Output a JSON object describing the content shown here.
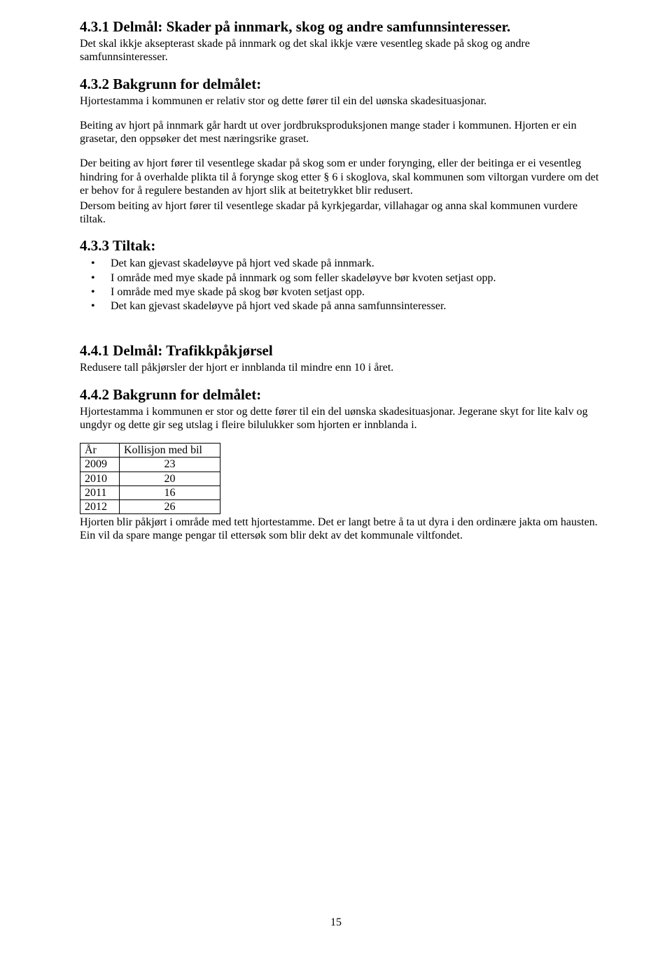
{
  "s431": {
    "heading": "4.3.1  Delmål: Skader på innmark, skog og andre samfunnsinteresser.",
    "para": "Det skal ikkje aksepterast skade på innmark og det skal ikkje være vesentleg skade på skog og andre samfunnsinteresser."
  },
  "s432": {
    "heading": "4.3.2  Bakgrunn for delmålet:",
    "para1": "Hjortestamma i kommunen er relativ stor og dette fører til ein del uønska skadesituasjonar.",
    "para2": "Beiting av hjort på innmark går hardt ut over jordbruksproduksjonen mange stader i kommunen. Hjorten er ein grasetar, den oppsøker det mest næringsrike graset.",
    "para3": "Der beiting av hjort fører til vesentlege skadar på skog som er under forynging, eller der beitinga er ei vesentleg hindring for å overhalde plikta til å forynge skog etter § 6 i skoglova, skal kommunen som viltorgan vurdere om det er behov for å regulere bestanden av hjort slik at beitetrykket blir redusert.",
    "para4": "Dersom beiting av hjort fører til vesentlege skadar på kyrkjegardar, villahagar og anna skal kommunen vurdere tiltak."
  },
  "s433": {
    "heading": "4.3.3  Tiltak:",
    "items": [
      "Det kan gjevast skadeløyve på hjort ved skade på innmark.",
      "I område med mye skade på innmark og som feller skadeløyve bør kvoten setjast opp.",
      "I område med mye skade på skog bør kvoten setjast opp.",
      "Det kan gjevast skadeløyve på hjort ved skade på anna samfunnsinteresser."
    ]
  },
  "s441": {
    "heading": "4.4.1  Delmål: Trafikkpåkjørsel",
    "para": "Redusere tall påkjørsler der hjort er innblanda til mindre enn 10 i året."
  },
  "s442": {
    "heading": "4.4.2  Bakgrunn for delmålet:",
    "para1": "Hjortestamma i kommunen er stor og dette fører til ein del uønska skadesituasjonar. Jegerane skyt for lite kalv og ungdyr og dette gir seg utslag i fleire bilulukker som hjorten er innblanda i.",
    "tableHeader": {
      "col1": "År",
      "col2": "Kollisjon med bil"
    },
    "tableRows": [
      {
        "year": "2009",
        "val": "23"
      },
      {
        "year": "2010",
        "val": "20"
      },
      {
        "year": "2011",
        "val": "16"
      },
      {
        "year": "2012",
        "val": "26"
      }
    ],
    "para2": "Hjorten blir påkjørt i område med tett hjortestamme. Det er langt betre å ta ut dyra i den ordinære jakta om hausten. Ein vil da spare mange pengar til ettersøk som blir dekt av det kommunale viltfondet."
  },
  "pageNumber": "15"
}
